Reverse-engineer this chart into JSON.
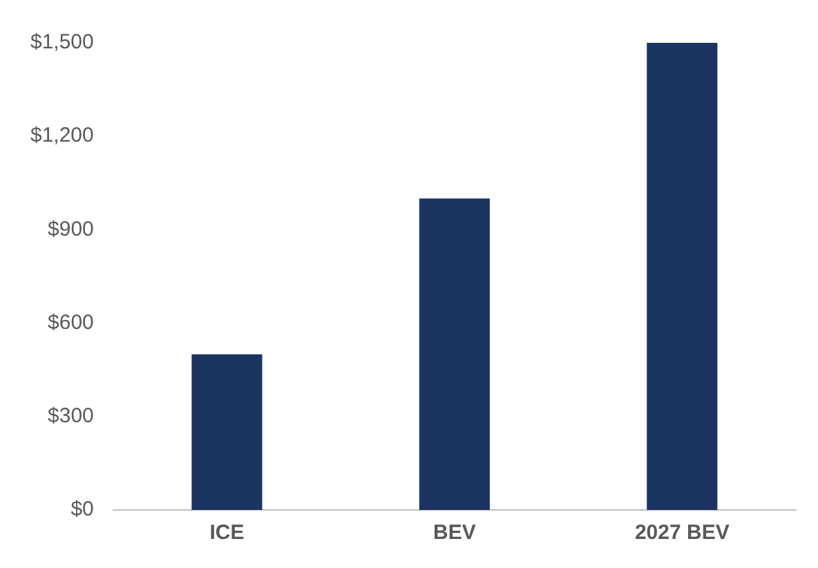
{
  "chart_data": {
    "type": "bar",
    "categories": [
      "ICE",
      "BEV",
      "2027 BEV"
    ],
    "values": [
      500,
      1000,
      1500
    ],
    "color": "#1c3461",
    "ylim": [
      0,
      1500
    ],
    "yticks": [
      {
        "value": 0,
        "label": "$0"
      },
      {
        "value": 300,
        "label": "$300"
      },
      {
        "value": 600,
        "label": "$600"
      },
      {
        "value": 900,
        "label": "$900"
      },
      {
        "value": 1200,
        "label": "$1,200"
      },
      {
        "value": 1500,
        "label": "$1,500"
      }
    ],
    "grid": false,
    "legend": false
  }
}
